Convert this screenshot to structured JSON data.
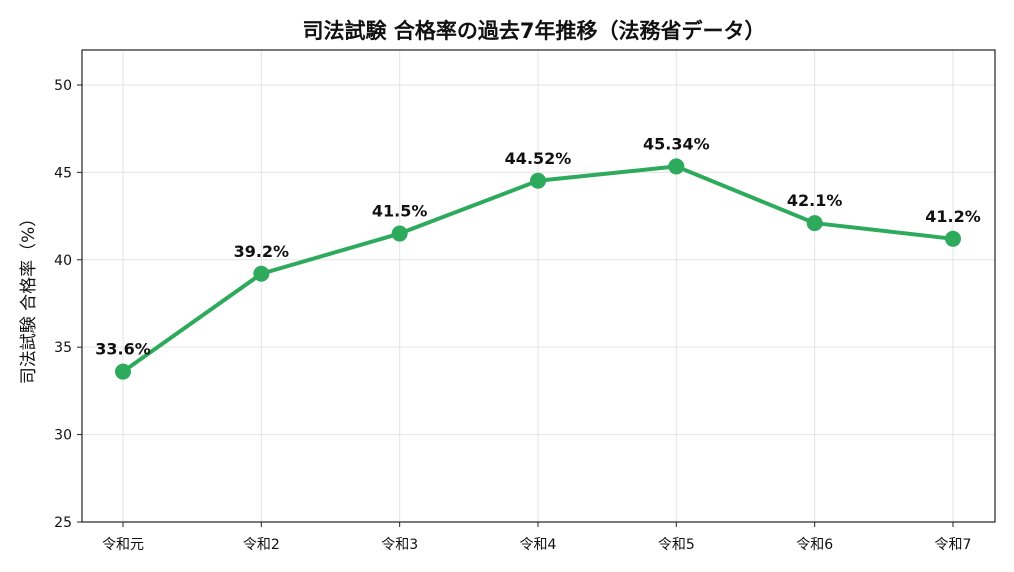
{
  "chart_data": {
    "type": "line",
    "title": "司法試験 合格率の過去7年推移（法務省データ）",
    "xlabel": "",
    "ylabel": "司法試験 合格率（%）",
    "categories": [
      "令和元",
      "令和2",
      "令和3",
      "令和4",
      "令和5",
      "令和6",
      "令和7"
    ],
    "series": [
      {
        "values": [
          33.6,
          39.2,
          41.5,
          44.52,
          45.34,
          42.1,
          41.2
        ],
        "labels": [
          "33.6%",
          "39.2%",
          "41.5%",
          "44.52%",
          "45.34%",
          "42.1%",
          "41.2%"
        ],
        "color": "#2eaa5c"
      }
    ],
    "ylim": [
      25,
      52
    ],
    "yticks": [
      25,
      30,
      35,
      40,
      45,
      50
    ],
    "grid": true,
    "legend": "none"
  }
}
